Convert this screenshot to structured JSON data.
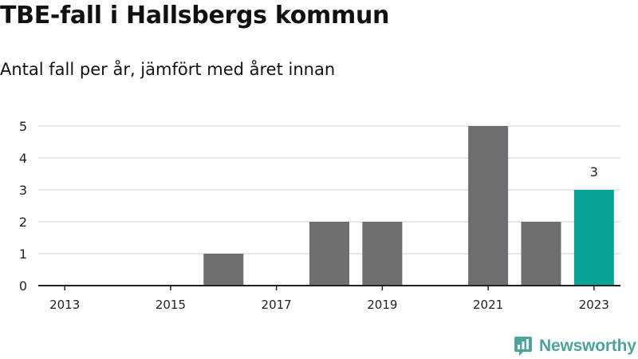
{
  "header": {
    "title": "TBE-fall i Hallsbergs kommun",
    "subtitle": "Antal fall per år, jämfört med året innan"
  },
  "chart_data": {
    "type": "bar",
    "categories": [
      "2013",
      "2014",
      "2015",
      "2016",
      "2017",
      "2018",
      "2019",
      "2020",
      "2021",
      "2022",
      "2023"
    ],
    "values": [
      0,
      0,
      0,
      1,
      0,
      2,
      2,
      0,
      5,
      2,
      3
    ],
    "xtick_labels": [
      "2013",
      "2015",
      "2017",
      "2019",
      "2021",
      "2023"
    ],
    "yticks": [
      0,
      1,
      2,
      3,
      4,
      5
    ],
    "ylim": [
      0,
      5
    ],
    "grid": true,
    "highlight_category": "2023",
    "data_labels": [
      {
        "category": "2023",
        "text": "3"
      }
    ],
    "colors": {
      "bar": "#6d6d72",
      "highlight": "#0aa39a",
      "grid": "#d6d6d6",
      "axis": "#222222"
    }
  },
  "footer": {
    "brand": "Newsworthy",
    "brand_icon": "newsworthy-logo-icon",
    "brand_color": "#4ea39a"
  }
}
